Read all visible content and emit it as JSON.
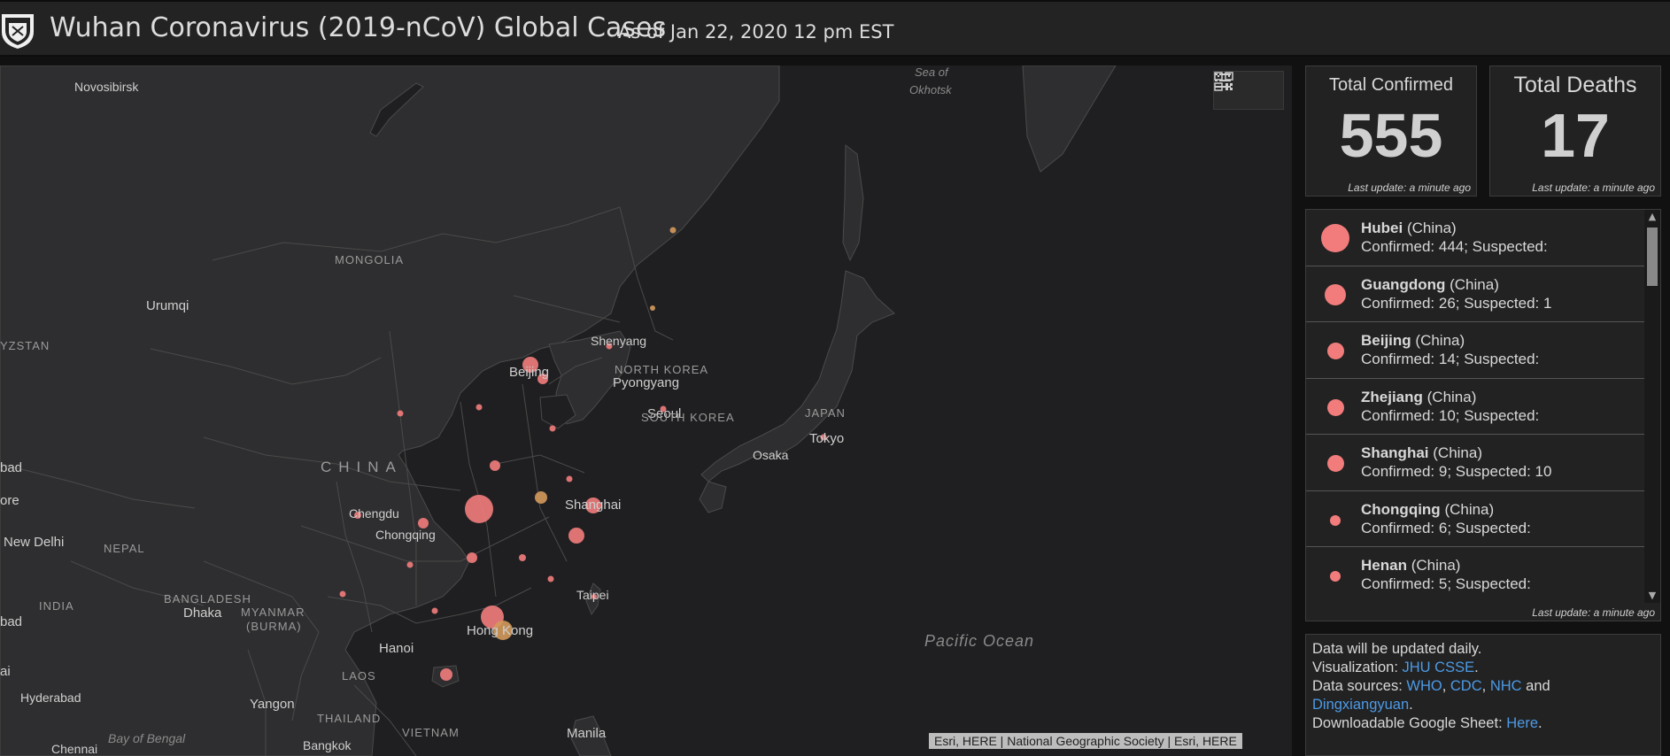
{
  "header": {
    "title": "Wuhan Coronavirus (2019-nCoV) Global Cases",
    "subtitle": "As of Jan 22, 2020 12 pm EST",
    "logo_icon": "jhu-shield-icon"
  },
  "map": {
    "labels": {
      "novosibirsk": "Novosibirsk",
      "sea_okhotsk_1": "Sea of",
      "sea_okhotsk_2": "Okhotsk",
      "mongolia": "MONGOLIA",
      "urumqi": "Urumqi",
      "kyrgyzstan": "YZSTAN",
      "shenyang": "Shenyang",
      "beijing": "Beijing",
      "north_korea": "NORTH KOREA",
      "pyongyang": "Pyongyang",
      "seoul": "Seoul",
      "south_korea": "SOUTH KOREA",
      "japan": "JAPAN",
      "tokyo": "Tokyo",
      "osaka": "Osaka",
      "china": "CHINA",
      "bad1": "bad",
      "ore": "ore",
      "chengdu": "Chengdu",
      "chongqing": "Chongqing",
      "shanghai": "Shanghai",
      "new_delhi": "New Delhi",
      "nepal": "NEPAL",
      "bangladesh": "BANGLADESH",
      "dhaka": "Dhaka",
      "myanmar": "MYANMAR",
      "burma": "(BURMA)",
      "india": "INDIA",
      "bad2": "bad",
      "taipei": "Taipei",
      "hong_kong": "Hong Kong",
      "hanoi": "Hanoi",
      "laos": "LAOS",
      "ai": "ai",
      "hyderabad": "Hyderabad",
      "yangon": "Yangon",
      "thailand": "THAILAND",
      "bay_bengal": "Bay of Bengal",
      "vietnam": "VIETNAM",
      "manila": "Manila",
      "chennai": "Chennai",
      "bangkok": "Bangkok",
      "pacific": "Pacific Ocean"
    },
    "tools": {
      "list_icon": "list-icon",
      "qr_icon": "qr-code-icon"
    },
    "attribution": "Esri, HERE | National Geographic Society | Esri, HERE",
    "colors": {
      "confirmed_dot": "#f27c7c",
      "suspected_dot": "#d49a5c",
      "land": "#2e2e30",
      "water": "#1f1f21"
    }
  },
  "stats": {
    "confirmed": {
      "title": "Total Confirmed",
      "value": "555",
      "update": "Last update: a minute ago"
    },
    "deaths": {
      "title": "Total Deaths",
      "value": "17",
      "update": "Last update: a minute ago"
    }
  },
  "list": {
    "items": [
      {
        "province": "Hubei",
        "country": "(China)",
        "stats": "Confirmed: 444; Suspected:"
      },
      {
        "province": "Guangdong",
        "country": "(China)",
        "stats": "Confirmed: 26; Suspected: 1"
      },
      {
        "province": "Beijing",
        "country": "(China)",
        "stats": "Confirmed: 14; Suspected:"
      },
      {
        "province": "Zhejiang",
        "country": "(China)",
        "stats": "Confirmed: 10; Suspected:"
      },
      {
        "province": "Shanghai",
        "country": "(China)",
        "stats": "Confirmed: 9; Suspected: 10"
      },
      {
        "province": "Chongqing",
        "country": "(China)",
        "stats": "Confirmed: 6; Suspected:"
      },
      {
        "province": "Henan",
        "country": "(China)",
        "stats": "Confirmed: 5; Suspected:"
      }
    ],
    "update": "Last update: a minute ago"
  },
  "info": {
    "line1": "Data will be updated daily.",
    "viz_prefix": "Visualization: ",
    "viz_link": "JHU CSSE",
    "viz_suffix": ".",
    "sources_prefix": "Data sources: ",
    "src1": "WHO",
    "src2": "CDC",
    "src3": "NHC",
    "sources_and": " and",
    "src4": "Dingxiangyuan",
    "period": ".",
    "sheet_prefix": "Downloadable Google Sheet: ",
    "sheet_link": "Here",
    "sheet_suffix": ".",
    "comma": ", "
  }
}
